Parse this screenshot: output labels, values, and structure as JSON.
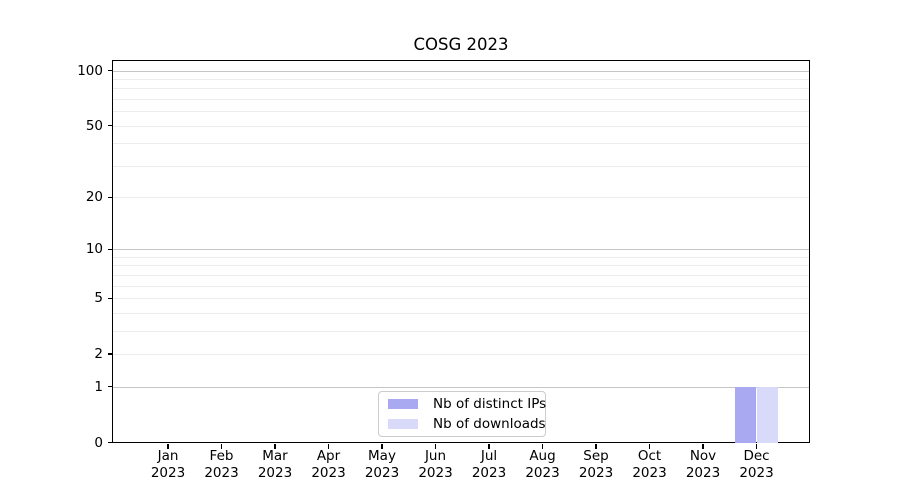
{
  "chart_data": {
    "type": "bar",
    "title": "COSG 2023",
    "categories": [
      "Jan 2023",
      "Feb 2023",
      "Mar 2023",
      "Apr 2023",
      "May 2023",
      "Jun 2023",
      "Jul 2023",
      "Aug 2023",
      "Sep 2023",
      "Oct 2023",
      "Nov 2023",
      "Dec 2023"
    ],
    "series": [
      {
        "name": "Nb of distinct IPs",
        "color": "#a9a9f2",
        "values": [
          0,
          0,
          0,
          0,
          0,
          0,
          0,
          0,
          0,
          0,
          0,
          1
        ]
      },
      {
        "name": "Nb of downloads",
        "color": "#d9d9f9",
        "values": [
          0,
          0,
          0,
          0,
          0,
          0,
          0,
          0,
          0,
          0,
          0,
          1
        ]
      }
    ],
    "yscale": "log1p",
    "ylim": [
      0,
      115
    ],
    "yticks": [
      0,
      1,
      2,
      5,
      10,
      20,
      50,
      100
    ],
    "grid_minor_values": [
      2,
      3,
      4,
      5,
      6,
      7,
      8,
      9,
      20,
      30,
      40,
      50,
      60,
      70,
      80,
      90
    ],
    "grid_major_values": [
      1,
      10,
      100
    ],
    "grid": true,
    "legend_position": "lower center"
  },
  "colors": {
    "grid_major": "#c6c6c6",
    "grid_minor": "#ececec",
    "axis": "#000000",
    "text": "#000000",
    "legend_border": "#cccccc",
    "background": "#ffffff"
  }
}
